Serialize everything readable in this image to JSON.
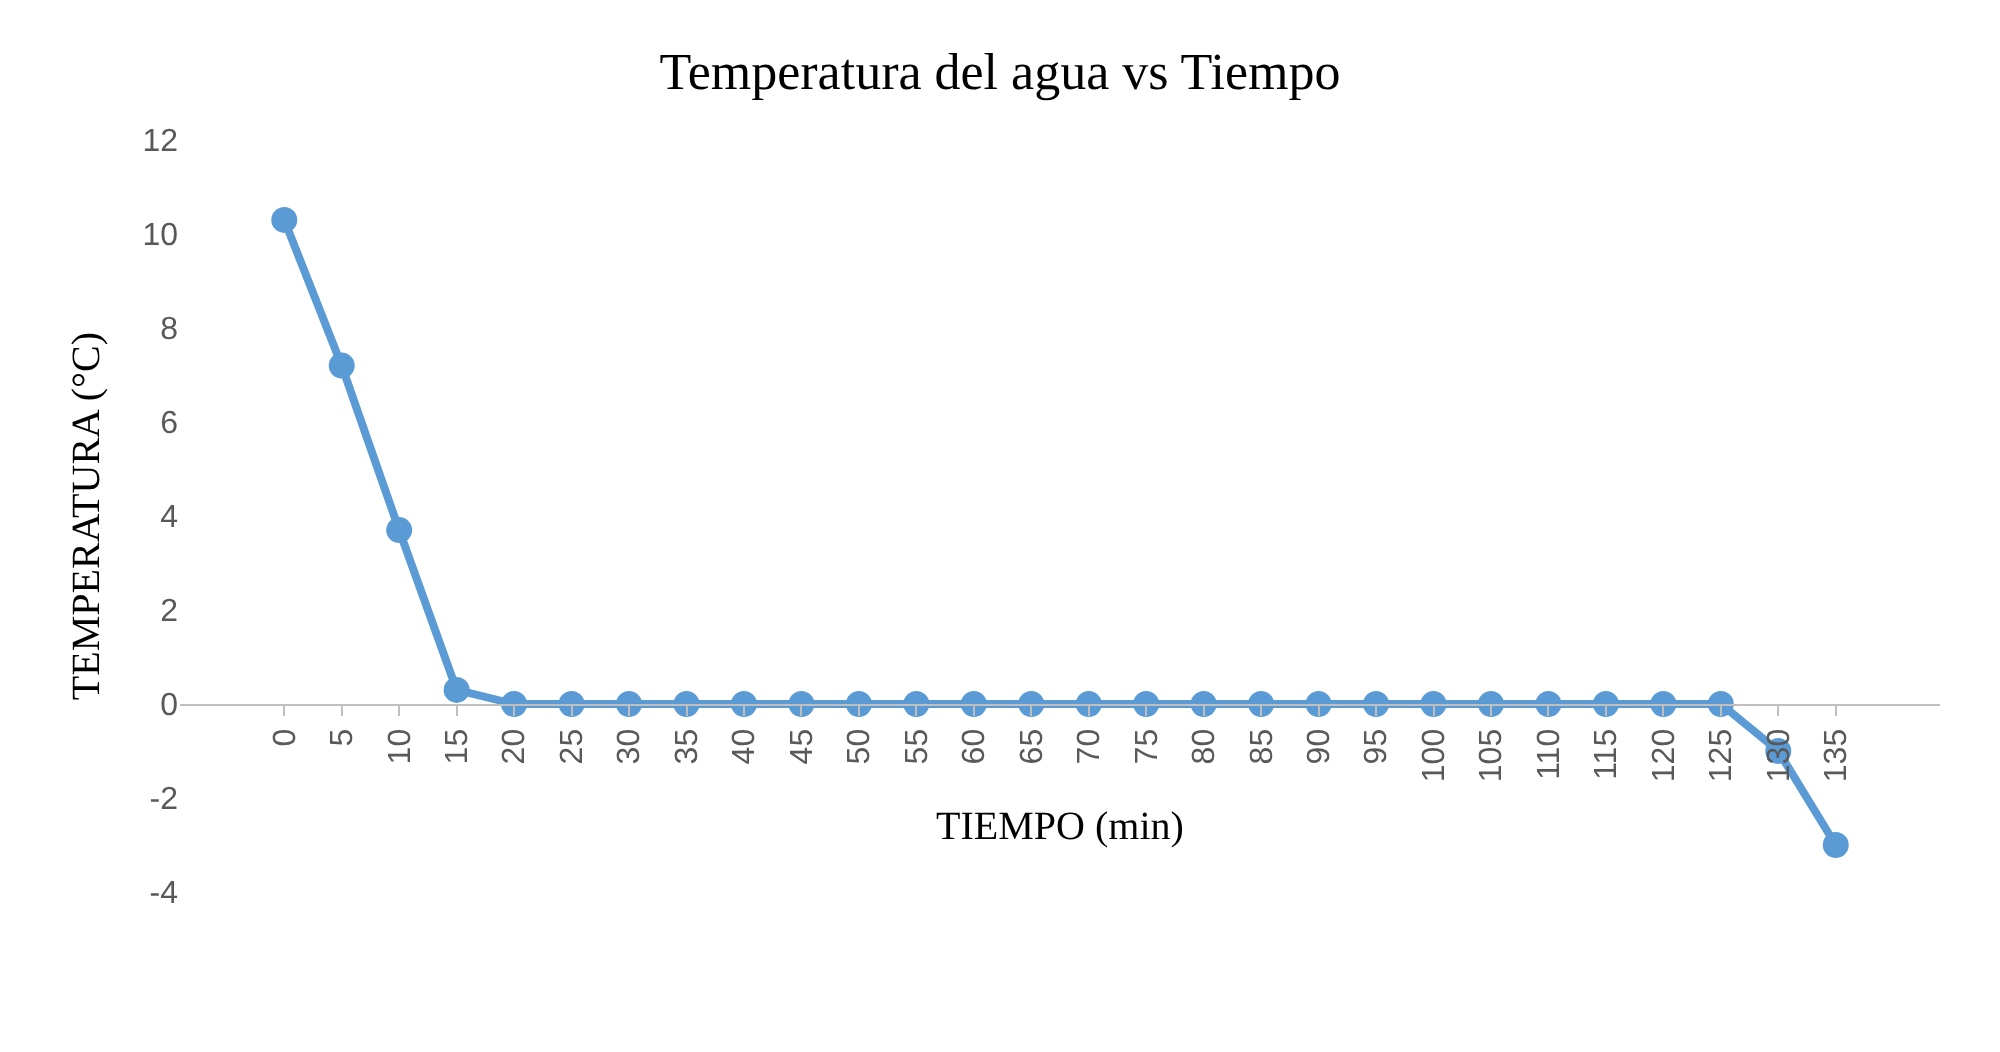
{
  "chart_data": {
    "type": "line",
    "title": "Temperatura del agua vs Tiempo",
    "xlabel": "TIEMPO (min)",
    "ylabel": "TEMPERATURA (°C)",
    "categories": [
      "0",
      "5",
      "10",
      "15",
      "20",
      "25",
      "30",
      "35",
      "40",
      "45",
      "50",
      "55",
      "60",
      "65",
      "70",
      "75",
      "80",
      "85",
      "90",
      "95",
      "100",
      "105",
      "110",
      "115",
      "120",
      "125",
      "130",
      "135"
    ],
    "series": [
      {
        "color": "#5b9bd5",
        "values": [
          10.3,
          7.2,
          3.7,
          0.3,
          0,
          0,
          0,
          0,
          0,
          0,
          0,
          0,
          0,
          0,
          0,
          0,
          0,
          0,
          0,
          0,
          0,
          0,
          0,
          0,
          0,
          0,
          -1,
          -3
        ]
      }
    ],
    "ylim": [
      -4,
      12
    ],
    "yticks": [
      -4,
      -2,
      0,
      2,
      4,
      6,
      8,
      10,
      12
    ],
    "grid": false,
    "marker": "circle",
    "line_style": "solid"
  }
}
